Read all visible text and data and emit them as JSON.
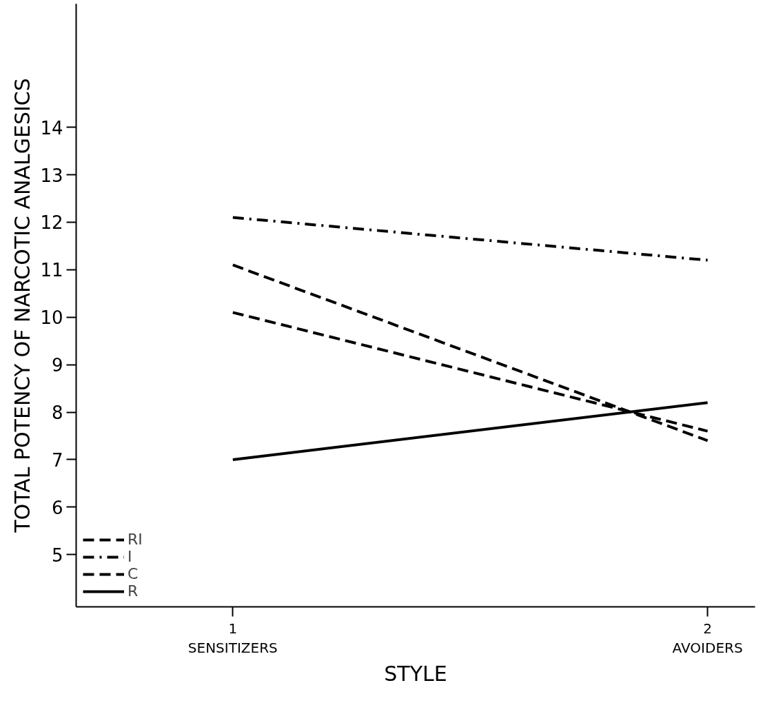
{
  "chart_data": {
    "type": "line",
    "xlabel": "STYLE",
    "ylabel": "TOTAL POTENCY OF NARCOTIC ANALGESICS",
    "x": [
      1,
      2
    ],
    "xlim": [
      0.67,
      2.1
    ],
    "xticks": [
      {
        "value": 1,
        "label": "1\nSENSITIZERS"
      },
      {
        "value": 2,
        "label": "2\nAVOIDERS"
      }
    ],
    "ylim": [
      3.9,
      16.6
    ],
    "yticks": [
      5,
      6,
      7,
      8,
      9,
      10,
      11,
      12,
      13,
      14
    ],
    "series": [
      {
        "name": "RI",
        "color": "#000000",
        "values": [
          11.1,
          7.4
        ],
        "line_style": "dashed"
      },
      {
        "name": "I",
        "color": "#000000",
        "values": [
          12.1,
          11.2
        ],
        "line_style": "dashdot"
      },
      {
        "name": "C",
        "color": "#000000",
        "values": [
          10.1,
          7.6
        ],
        "line_style": "dashed"
      },
      {
        "name": "R",
        "color": "#000000",
        "values": [
          7.0,
          8.2
        ],
        "line_style": "solid"
      }
    ],
    "grid": false,
    "legend": "bottom left",
    "marker": "none"
  }
}
